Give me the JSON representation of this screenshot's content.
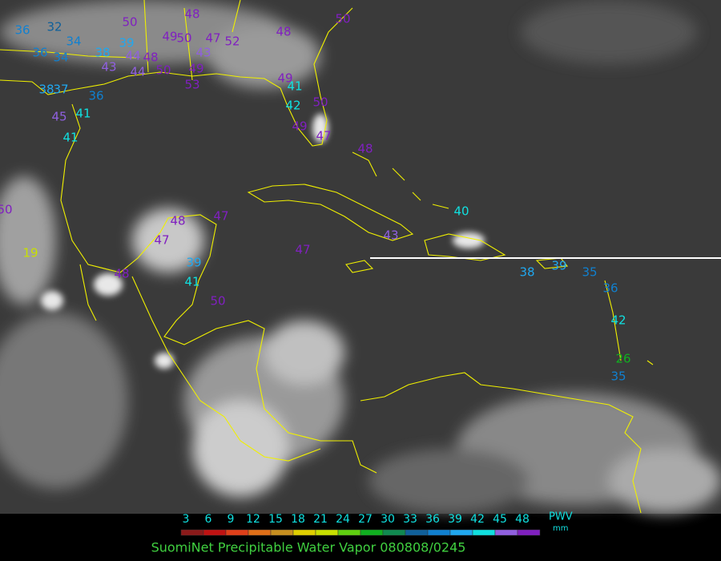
{
  "map": {
    "stations": [
      36,
      32,
      34,
      36,
      34,
      38,
      39,
      43,
      44,
      48,
      49,
      50,
      47,
      52,
      43,
      48,
      50,
      48,
      50,
      49,
      50,
      44,
      53,
      38,
      37,
      36,
      45,
      41,
      41,
      49,
      41,
      42,
      50,
      49,
      47,
      48,
      40,
      43,
      47,
      48,
      47,
      47,
      39,
      41,
      48,
      50,
      19,
      50,
      38,
      39,
      35,
      36,
      42,
      26,
      35
    ],
    "colorbar": {
      "ticks": [
        3,
        6,
        9,
        12,
        15,
        18,
        21,
        24,
        27,
        30,
        33,
        36,
        39,
        42,
        45,
        48
      ],
      "colors": [
        "#8b1a1a",
        "#c01212",
        "#e0401a",
        "#e07018",
        "#c89020",
        "#e0d000",
        "#c8e000",
        "#60d010",
        "#10b020",
        "#108a50",
        "#10609a",
        "#1080d0",
        "#20a8f0",
        "#10e0e0",
        "#9060e0",
        "#8020c0"
      ],
      "unit_label": "PWV",
      "unit": "mm"
    },
    "title": "SuomiNet Precipitable Water Vapor 080808/0245"
  }
}
